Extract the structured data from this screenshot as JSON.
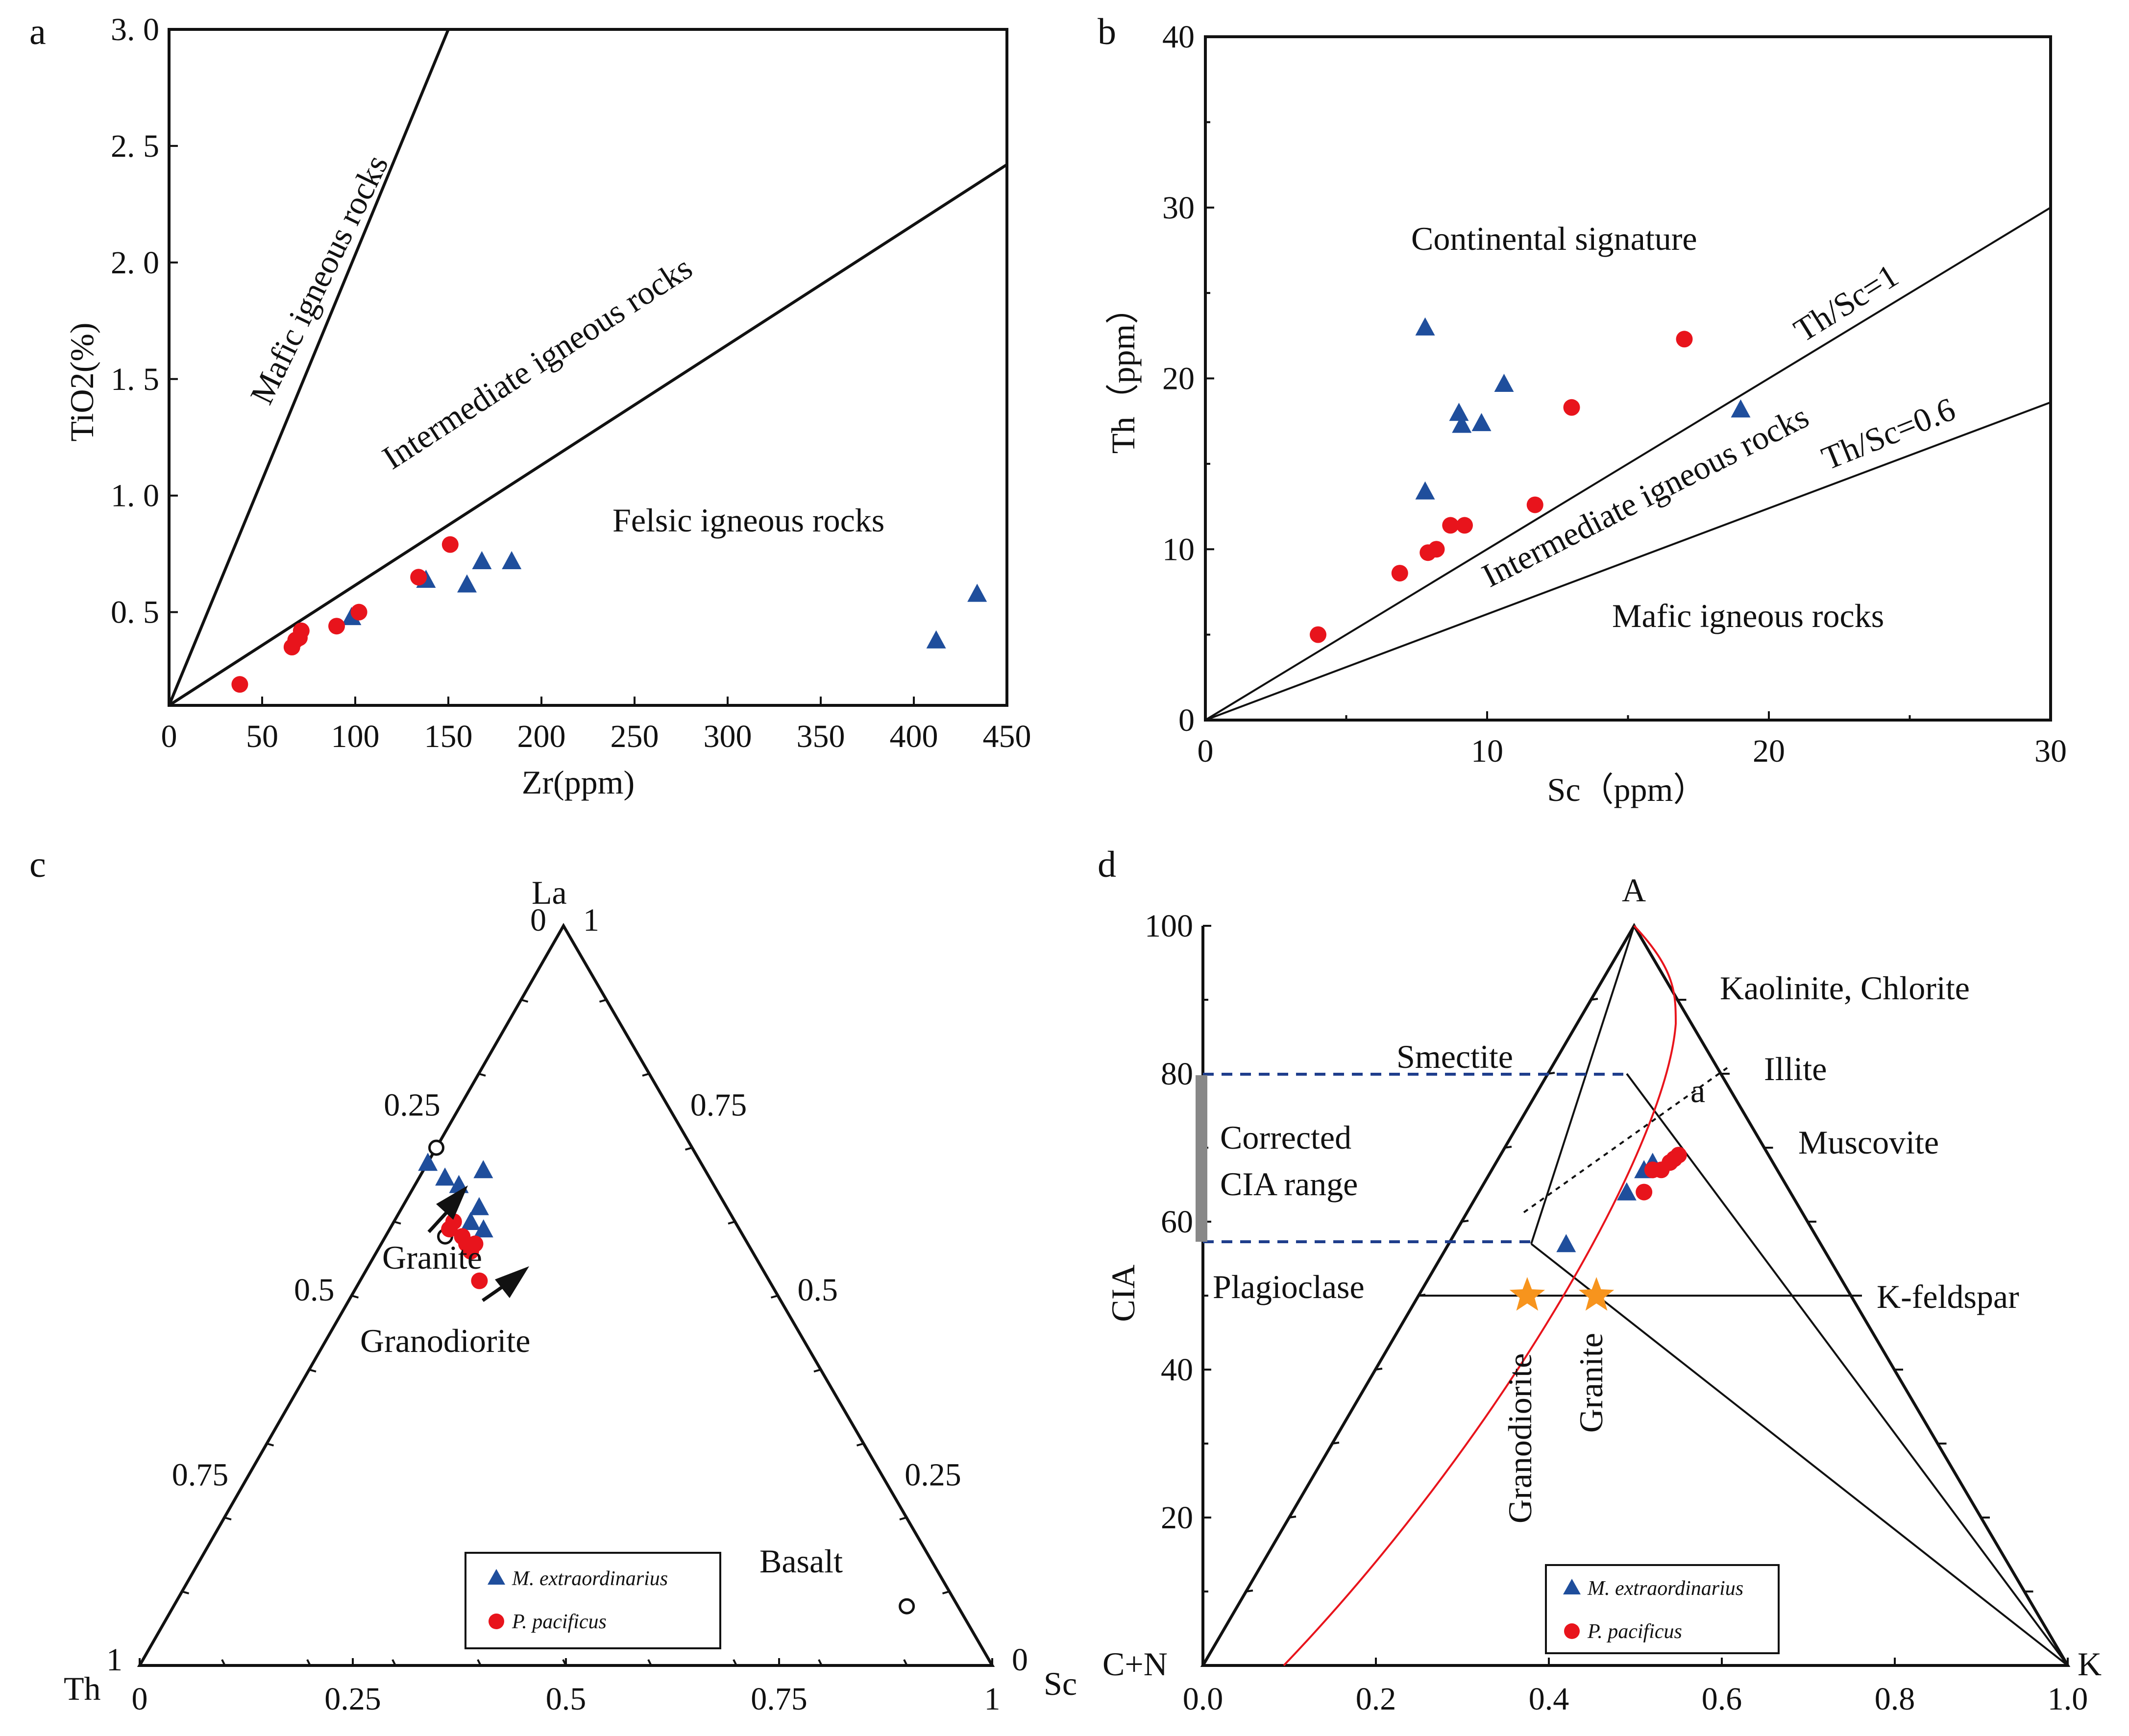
{
  "colors": {
    "triangle": "#1f4e9c",
    "circle": "#e8141c",
    "orange_star": "#f7941d",
    "red_curve": "#e8141c",
    "dash_blue": "#1f3e8c",
    "grey_bar": "#888888"
  },
  "chart_data": [
    {
      "panel": "a",
      "type": "scatter",
      "xlabel": "Zr(ppm)",
      "ylabel": "TiO2(%)",
      "xlim": [
        0,
        450
      ],
      "ylim": [
        0.1,
        3.0
      ],
      "xticks": [
        "0",
        "50",
        "100",
        "150",
        "200",
        "250",
        "300",
        "350",
        "400",
        "450"
      ],
      "yticks": [
        {
          "v": 0.5,
          "t": "0. 5"
        },
        {
          "v": 1.0,
          "t": "1. 0"
        },
        {
          "v": 1.5,
          "t": "1. 5"
        },
        {
          "v": 2.0,
          "t": "2. 0"
        },
        {
          "v": 2.5,
          "t": "2. 5"
        },
        {
          "v": 3.0,
          "t": "3. 0"
        }
      ],
      "field_labels": [
        "Mafic igneous rocks",
        "Intermediate igneous rocks",
        "Felsic igneous rocks"
      ],
      "boundary_lines": [
        [
          [
            0,
            0.1
          ],
          [
            150,
            3.0
          ]
        ],
        [
          [
            0,
            0.1
          ],
          [
            450,
            2.42
          ]
        ]
      ],
      "series": [
        {
          "marker": "triangle",
          "points": [
            [
              98,
              0.48
            ],
            [
              138,
              0.64
            ],
            [
              160,
              0.62
            ],
            [
              168,
              0.72
            ],
            [
              184,
              0.72
            ],
            [
              412,
              0.38
            ],
            [
              434,
              0.58
            ]
          ]
        },
        {
          "marker": "circle",
          "points": [
            [
              38,
              0.19
            ],
            [
              66,
              0.35
            ],
            [
              68,
              0.38
            ],
            [
              70,
              0.39
            ],
            [
              71,
              0.42
            ],
            [
              90,
              0.44
            ],
            [
              102,
              0.5
            ],
            [
              134,
              0.65
            ],
            [
              151,
              0.79
            ]
          ]
        }
      ]
    },
    {
      "panel": "b",
      "type": "scatter",
      "xlabel": "Sc（ppm）",
      "ylabel": "Th（ppm）",
      "xlim": [
        0,
        30
      ],
      "ylim": [
        0,
        40
      ],
      "xticks": [
        "0",
        "10",
        "20",
        "30"
      ],
      "yticks": [
        "0",
        "10",
        "20",
        "30",
        "40"
      ],
      "field_labels": [
        "Continental signature",
        "Intermediate igneous rocks",
        "Mafic igneous rocks"
      ],
      "line_labels": [
        "Th/Sc=1",
        "Th/Sc=0.6"
      ],
      "boundary_lines": [
        [
          [
            0,
            0
          ],
          [
            30,
            30
          ]
        ],
        [
          [
            0,
            0
          ],
          [
            30,
            18.6
          ]
        ]
      ],
      "series": [
        {
          "marker": "triangle",
          "points": [
            [
              7.8,
              23.0
            ],
            [
              7.8,
              13.4
            ],
            [
              9.0,
              18.0
            ],
            [
              9.1,
              17.3
            ],
            [
              9.8,
              17.4
            ],
            [
              10.6,
              19.7
            ],
            [
              19.0,
              18.2
            ]
          ]
        },
        {
          "marker": "circle",
          "points": [
            [
              4.0,
              5.0
            ],
            [
              6.9,
              8.6
            ],
            [
              7.9,
              9.8
            ],
            [
              8.2,
              10.0
            ],
            [
              8.7,
              11.4
            ],
            [
              9.2,
              11.4
            ],
            [
              11.7,
              12.6
            ],
            [
              13.0,
              18.3
            ],
            [
              17.0,
              22.3
            ]
          ]
        }
      ]
    },
    {
      "panel": "c",
      "type": "ternary",
      "vertices": [
        "La",
        "Th",
        "Sc"
      ],
      "axis_ticks": {
        "left": [
          "0",
          "0.25",
          "0.5",
          "0.75",
          "1"
        ],
        "bottom": [
          "0",
          "0.25",
          "0.5",
          "0.75",
          "1"
        ],
        "right": [
          "1",
          "0.75",
          "0.5",
          "0.25",
          "0"
        ]
      },
      "reference_points": [
        {
          "label": "Granite",
          "La": 0.7,
          "Th": 0.3,
          "Sc": 0.0
        },
        {
          "label": "Granodiorite",
          "La": 0.58,
          "Th": 0.35,
          "Sc": 0.07
        },
        {
          "label": "Basalt",
          "La": 0.08,
          "Th": 0.06,
          "Sc": 0.86
        }
      ],
      "series": [
        {
          "name": "M. extraordinarius",
          "marker": "triangle",
          "points": [
            [
              0.74,
              0.3
            ],
            [
              0.68,
              0.32
            ],
            [
              0.66,
              0.31
            ],
            [
              0.62,
              0.29
            ],
            [
              0.6,
              0.31
            ],
            [
              0.59,
              0.3
            ],
            [
              0.67,
              0.26
            ]
          ]
        },
        {
          "name": "P. pacificus",
          "marker": "circle",
          "points": [
            [
              0.59,
              0.34
            ],
            [
              0.6,
              0.33
            ],
            [
              0.58,
              0.33
            ],
            [
              0.57,
              0.33
            ],
            [
              0.56,
              0.33
            ],
            [
              0.57,
              0.32
            ],
            [
              0.52,
              0.34
            ]
          ]
        }
      ],
      "legend": [
        "M. extraordinarius",
        "P. pacificus"
      ]
    },
    {
      "panel": "d",
      "type": "ternary",
      "vertices": [
        "A",
        "C+N",
        "K"
      ],
      "xlabel_ticks": [
        "0.0",
        "0.2",
        "0.4",
        "0.6",
        "0.8",
        "1.0"
      ],
      "ylabel": "CIA",
      "yticks": [
        "20",
        "40",
        "60",
        "80",
        "100"
      ],
      "mineral_labels": [
        "Kaolinite, Chlorite",
        "Smectite",
        "Illite",
        "Muscovite",
        "Plagioclase",
        "K-feldspar"
      ],
      "bar_label_lines": [
        "Corrected",
        "CIA range"
      ],
      "trend_label": "a",
      "corrected_cia_range": [
        57,
        80
      ],
      "reference_points": [
        {
          "label": "Granodiorite",
          "CIA": 50,
          "x": 0.375
        },
        {
          "label": "Granite",
          "CIA": 50,
          "x": 0.455
        }
      ],
      "series": [
        {
          "name": "M. extraordinarius",
          "marker": "triangle",
          "points": [
            [
              0.42,
              57
            ],
            [
              0.49,
              64
            ],
            [
              0.51,
              67
            ],
            [
              0.52,
              68
            ]
          ]
        },
        {
          "name": "P. pacificus",
          "marker": "circle",
          "points": [
            [
              0.51,
              64
            ],
            [
              0.52,
              67
            ],
            [
              0.53,
              67
            ],
            [
              0.54,
              68
            ],
            [
              0.55,
              69
            ],
            [
              0.545,
              68.5
            ]
          ]
        }
      ],
      "legend": [
        "M. extraordinarius",
        "P. pacificus"
      ]
    }
  ]
}
